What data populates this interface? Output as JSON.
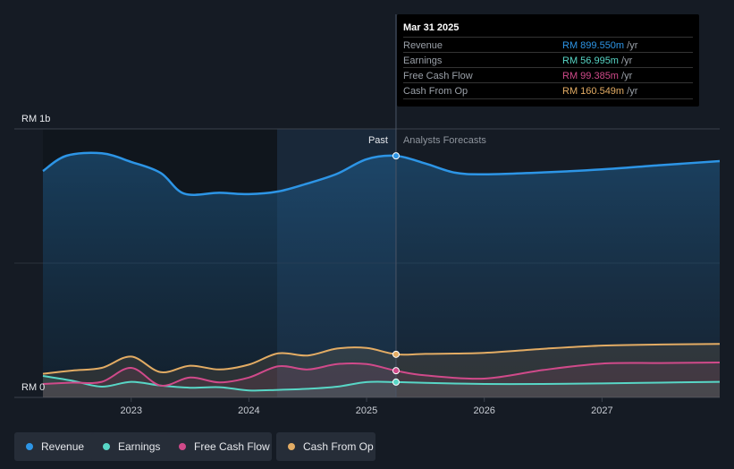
{
  "chart_data": {
    "type": "area",
    "y_unit_label": "RM 1b",
    "y_zero_label": "RM 0",
    "ylim": [
      0,
      1000
    ],
    "xlim": [
      2022.25,
      2028.0
    ],
    "x_ticks": [
      "2023",
      "2024",
      "2025",
      "2026",
      "2027"
    ],
    "past_label": "Past",
    "forecast_label": "Analysts Forecasts",
    "divider_x": 2025.25,
    "series": [
      {
        "name": "Revenue",
        "color": "#2d95e6",
        "x": [
          2022.25,
          2022.45,
          2022.75,
          2023.0,
          2023.25,
          2023.45,
          2023.75,
          2024.0,
          2024.25,
          2024.5,
          2024.75,
          2025.0,
          2025.25,
          2025.5,
          2025.75,
          2026.0,
          2026.5,
          2027.0,
          2027.5,
          2028.0
        ],
        "y": [
          843,
          900,
          909,
          877,
          836,
          759,
          762,
          757,
          767,
          797,
          833,
          887,
          899.55,
          871,
          837,
          831,
          838,
          849,
          865,
          880
        ]
      },
      {
        "name": "Earnings",
        "color": "#58d6c6",
        "x": [
          2022.25,
          2022.5,
          2022.75,
          2023.0,
          2023.25,
          2023.5,
          2023.75,
          2024.0,
          2024.25,
          2024.5,
          2024.75,
          2025.0,
          2025.25,
          2025.5,
          2026.0,
          2026.5,
          2027.0,
          2027.5,
          2028.0
        ],
        "y": [
          80,
          62,
          40,
          58,
          44,
          36,
          38,
          26,
          28,
          32,
          40,
          57,
          56.995,
          54,
          50,
          50,
          52,
          55,
          58
        ]
      },
      {
        "name": "Free Cash Flow",
        "color": "#d04a8a",
        "x": [
          2022.25,
          2022.5,
          2022.75,
          2023.0,
          2023.25,
          2023.5,
          2023.75,
          2024.0,
          2024.25,
          2024.5,
          2024.75,
          2025.0,
          2025.25,
          2025.5,
          2026.0,
          2026.5,
          2027.0,
          2027.5,
          2028.0
        ],
        "y": [
          50,
          55,
          58,
          110,
          44,
          74,
          56,
          74,
          116,
          104,
          124,
          124,
          99.385,
          82,
          70,
          102,
          126,
          128,
          130
        ]
      },
      {
        "name": "Cash From Op",
        "color": "#e3ac64",
        "x": [
          2022.25,
          2022.5,
          2022.75,
          2023.0,
          2023.25,
          2023.5,
          2023.75,
          2024.0,
          2024.25,
          2024.5,
          2024.75,
          2025.0,
          2025.25,
          2025.5,
          2026.0,
          2026.5,
          2027.0,
          2027.5,
          2028.0
        ],
        "y": [
          88,
          100,
          110,
          152,
          94,
          118,
          104,
          122,
          164,
          156,
          182,
          184,
          160.549,
          162,
          166,
          181,
          193,
          197,
          199
        ]
      }
    ]
  },
  "tooltip": {
    "date": "Mar 31 2025",
    "rows": [
      {
        "name": "Revenue",
        "value": "RM 899.550m",
        "unit": "/yr",
        "color": "#2d95e6"
      },
      {
        "name": "Earnings",
        "value": "RM 56.995m",
        "unit": "/yr",
        "color": "#58d6c6"
      },
      {
        "name": "Free Cash Flow",
        "value": "RM 99.385m",
        "unit": "/yr",
        "color": "#d04a8a"
      },
      {
        "name": "Cash From Op",
        "value": "RM 160.549m",
        "unit": "/yr",
        "color": "#e3ac64"
      }
    ]
  },
  "legend": [
    {
      "label": "Revenue",
      "color": "#2d95e6"
    },
    {
      "label": "Earnings",
      "color": "#58d6c6"
    },
    {
      "label": "Free Cash Flow",
      "color": "#d04a8a"
    },
    {
      "label": "Cash From Op",
      "color": "#e3ac64"
    }
  ]
}
